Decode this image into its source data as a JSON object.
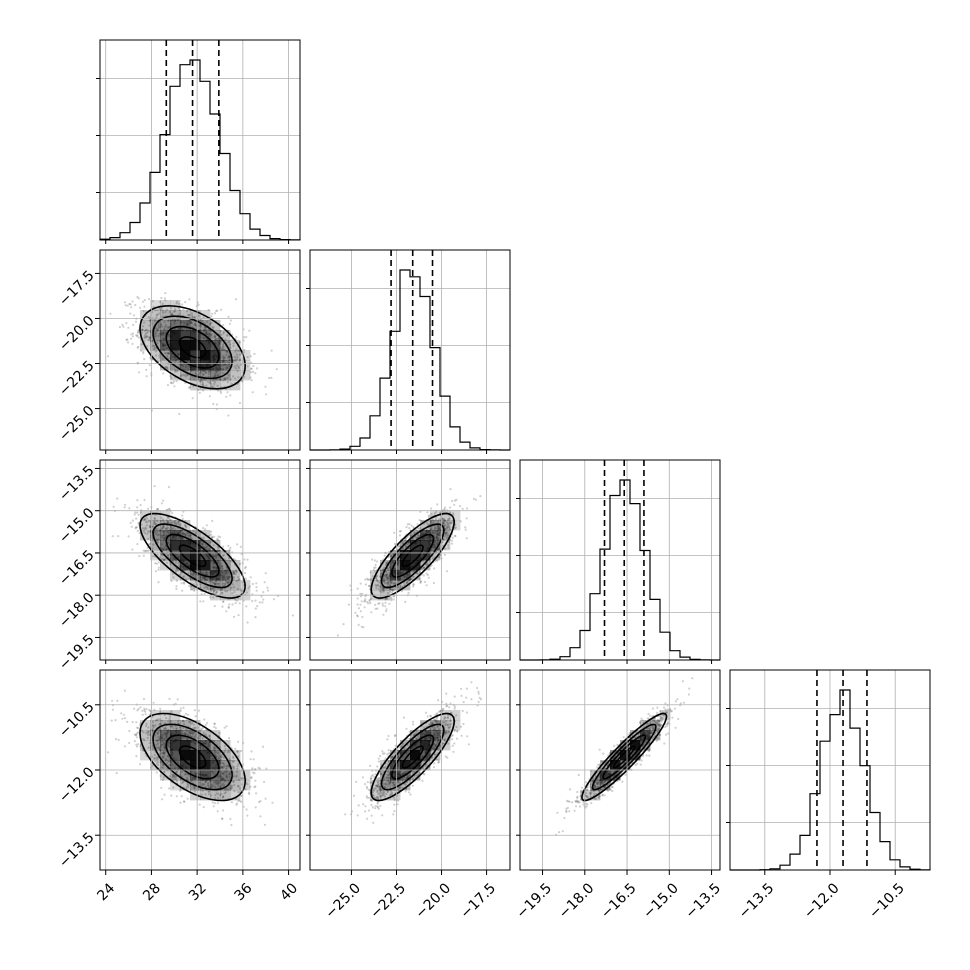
{
  "chart_data": {
    "type": "corner",
    "parameters": [
      {
        "range": [
          23.5,
          41
        ],
        "ticks": [
          24,
          28,
          32,
          36,
          40
        ],
        "tick_labels": [
          "24",
          "28",
          "32",
          "36",
          "40"
        ],
        "mean": 31.6,
        "sd": 2.3,
        "quantiles": [
          29.3,
          31.6,
          33.9
        ],
        "hist_peak_bin": 31.6
      },
      {
        "range": [
          -27.3,
          -16.2
        ],
        "ticks": [
          -25.0,
          -22.5,
          -20.0,
          -17.5
        ],
        "tick_labels": [
          "−25.0",
          "−22.5",
          "−20.0",
          "−17.5"
        ],
        "mean": -21.6,
        "sd": 1.15,
        "quantiles": [
          -22.8,
          -21.6,
          -20.5
        ],
        "hist_peak_bin": -21.6
      },
      {
        "range": [
          -20.3,
          -13.2
        ],
        "ticks": [
          -19.5,
          -18.0,
          -16.5,
          -15.0,
          -13.5
        ],
        "tick_labels": [
          "−19.5",
          "−18.0",
          "−16.5",
          "−15.0",
          "−13.5"
        ],
        "mean": -16.6,
        "sd": 0.75,
        "quantiles": [
          -17.3,
          -16.6,
          -15.9
        ],
        "hist_peak_bin": -16.45
      },
      {
        "range": [
          -14.3,
          -9.7
        ],
        "ticks": [
          -13.5,
          -12.0,
          -10.5
        ],
        "tick_labels": [
          "−13.5",
          "−12.0",
          "−10.5"
        ],
        "mean": -11.7,
        "sd": 0.5,
        "quantiles": [
          -12.3,
          -11.7,
          -11.15
        ],
        "hist_peak_bin": -11.7
      }
    ],
    "correlations": [
      {
        "pair": [
          0,
          1
        ],
        "rho": -0.45
      },
      {
        "pair": [
          0,
          2
        ],
        "rho": -0.72
      },
      {
        "pair": [
          0,
          3
        ],
        "rho": -0.55
      },
      {
        "pair": [
          1,
          2
        ],
        "rho": 0.8
      },
      {
        "pair": [
          1,
          3
        ],
        "rho": 0.82
      },
      {
        "pair": [
          2,
          3
        ],
        "rho": 0.93
      }
    ],
    "contour_levels_sigma": [
      0.5,
      1.0,
      1.5,
      2.0
    ],
    "grid": true,
    "colors": {
      "axes": "#000000",
      "grid": "#b0b0b0",
      "points": "#555555",
      "density": "#000000"
    }
  }
}
